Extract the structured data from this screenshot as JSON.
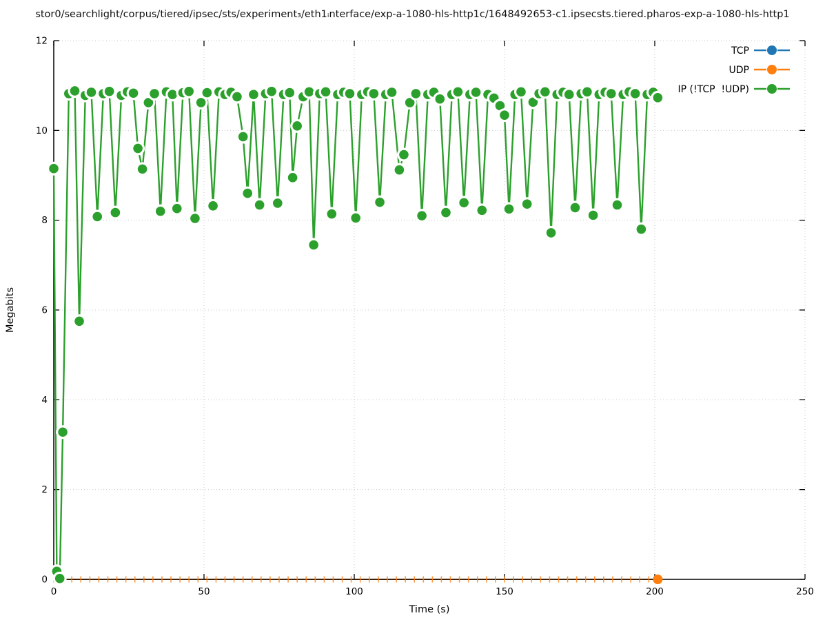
{
  "title": "stor0/searchlight/corpus/tiered/ipsec/sts/experiment₃/eth1ᵢnterface/exp-a-1080-hls-http1c/1648492653-c1.ipsecsts.tiered.pharos-exp-a-1080-hls-http1",
  "colors": {
    "tcp": "#1f77b4",
    "udp": "#ff7f0e",
    "ip": "#2ca02c",
    "grid": "#c8c8c8",
    "axis": "#000000",
    "background": "#ffffff"
  },
  "chart_data": {
    "type": "line",
    "title": "stor0/searchlight/corpus/tiered/ipsec/sts/experiment₃/eth1ᵢnterface/exp-a-1080-hls-http1c/1648492653-c1.ipsecsts.tiered.pharos-exp-a-1080-hls-http1",
    "xlabel": "Time (s)",
    "ylabel": "Megabits",
    "xlim": [
      0,
      250
    ],
    "ylim": [
      0,
      12
    ],
    "x_ticks": [
      0,
      50,
      100,
      150,
      200,
      250
    ],
    "y_ticks": [
      0,
      2,
      4,
      6,
      8,
      10,
      12
    ],
    "grid": true,
    "legend_position": "top-right-inside",
    "marker_style": "filled-circle-with-white-halo (gnuplot linespoints pointintervalbox)",
    "series": [
      {
        "name": "TCP",
        "color": "#1f77b4",
        "points": []
      },
      {
        "name": "UDP",
        "color": "#ff7f0e",
        "marker": "small-dash",
        "end_marker": "large-dot",
        "points": [
          [
            0,
            0
          ],
          [
            3,
            0
          ],
          [
            6,
            0
          ],
          [
            9,
            0
          ],
          [
            12,
            0
          ],
          [
            15,
            0
          ],
          [
            18,
            0
          ],
          [
            21,
            0
          ],
          [
            24,
            0
          ],
          [
            27,
            0
          ],
          [
            30,
            0
          ],
          [
            33,
            0
          ],
          [
            36,
            0
          ],
          [
            39,
            0
          ],
          [
            42,
            0
          ],
          [
            45,
            0
          ],
          [
            48,
            0
          ],
          [
            51,
            0
          ],
          [
            54,
            0
          ],
          [
            57,
            0
          ],
          [
            60,
            0
          ],
          [
            63,
            0
          ],
          [
            66,
            0
          ],
          [
            69,
            0
          ],
          [
            72,
            0
          ],
          [
            75,
            0
          ],
          [
            78,
            0
          ],
          [
            81,
            0
          ],
          [
            84,
            0
          ],
          [
            87,
            0
          ],
          [
            90,
            0
          ],
          [
            93,
            0
          ],
          [
            96,
            0
          ],
          [
            99,
            0
          ],
          [
            102,
            0
          ],
          [
            105,
            0
          ],
          [
            108,
            0
          ],
          [
            111,
            0
          ],
          [
            114,
            0
          ],
          [
            117,
            0
          ],
          [
            120,
            0
          ],
          [
            123,
            0
          ],
          [
            126,
            0
          ],
          [
            129,
            0
          ],
          [
            132,
            0
          ],
          [
            135,
            0
          ],
          [
            138,
            0
          ],
          [
            141,
            0
          ],
          [
            144,
            0
          ],
          [
            147,
            0
          ],
          [
            150,
            0
          ],
          [
            153,
            0
          ],
          [
            156,
            0
          ],
          [
            159,
            0
          ],
          [
            162,
            0
          ],
          [
            165,
            0
          ],
          [
            168,
            0
          ],
          [
            171,
            0
          ],
          [
            174,
            0
          ],
          [
            177,
            0
          ],
          [
            180,
            0
          ],
          [
            183,
            0
          ],
          [
            186,
            0
          ],
          [
            189,
            0
          ],
          [
            192,
            0
          ],
          [
            195,
            0
          ],
          [
            198,
            0
          ],
          [
            201,
            0
          ]
        ]
      },
      {
        "name": "IP (!TCP  !UDP)",
        "color": "#2ca02c",
        "marker": "large-dot",
        "points": [
          [
            0,
            9.15
          ],
          [
            1,
            0.18
          ],
          [
            2,
            0.02
          ],
          [
            3,
            3.28
          ],
          [
            5,
            10.82
          ],
          [
            7,
            10.88
          ],
          [
            8.5,
            5.75
          ],
          [
            10.5,
            10.78
          ],
          [
            12.5,
            10.85
          ],
          [
            14.5,
            8.08
          ],
          [
            16.5,
            10.82
          ],
          [
            18.5,
            10.87
          ],
          [
            20.5,
            8.17
          ],
          [
            22.5,
            10.78
          ],
          [
            24.5,
            10.86
          ],
          [
            26.5,
            10.83
          ],
          [
            28,
            9.6
          ],
          [
            29.5,
            9.14
          ],
          [
            31.5,
            10.62
          ],
          [
            33.5,
            10.82
          ],
          [
            35.5,
            8.2
          ],
          [
            37.5,
            10.86
          ],
          [
            39.5,
            10.8
          ],
          [
            41,
            8.26
          ],
          [
            43,
            10.84
          ],
          [
            45,
            10.87
          ],
          [
            47,
            8.04
          ],
          [
            49,
            10.62
          ],
          [
            51,
            10.84
          ],
          [
            53,
            8.32
          ],
          [
            55,
            10.86
          ],
          [
            57,
            10.8
          ],
          [
            59,
            10.85
          ],
          [
            61,
            10.75
          ],
          [
            63,
            9.86
          ],
          [
            64.5,
            8.6
          ],
          [
            66.5,
            10.8
          ],
          [
            68.5,
            8.34
          ],
          [
            70.5,
            10.82
          ],
          [
            72.5,
            10.87
          ],
          [
            74.5,
            8.38
          ],
          [
            76.5,
            10.8
          ],
          [
            78.5,
            10.84
          ],
          [
            79.5,
            8.95
          ],
          [
            81,
            10.1
          ],
          [
            83,
            10.75
          ],
          [
            85,
            10.86
          ],
          [
            86.5,
            7.45
          ],
          [
            88.5,
            10.82
          ],
          [
            90.5,
            10.86
          ],
          [
            92.5,
            8.14
          ],
          [
            94.5,
            10.8
          ],
          [
            96.5,
            10.85
          ],
          [
            98.5,
            10.82
          ],
          [
            100.5,
            8.05
          ],
          [
            102.5,
            10.8
          ],
          [
            104.5,
            10.86
          ],
          [
            106.5,
            10.82
          ],
          [
            108.5,
            8.4
          ],
          [
            110.5,
            10.8
          ],
          [
            112.5,
            10.85
          ],
          [
            115,
            9.12
          ],
          [
            116.5,
            9.46
          ],
          [
            118.5,
            10.62
          ],
          [
            120.5,
            10.82
          ],
          [
            122.5,
            8.1
          ],
          [
            124.5,
            10.8
          ],
          [
            126.5,
            10.85
          ],
          [
            128.5,
            10.7
          ],
          [
            130.5,
            8.17
          ],
          [
            132.5,
            10.8
          ],
          [
            134.5,
            10.86
          ],
          [
            136.5,
            8.39
          ],
          [
            138.5,
            10.8
          ],
          [
            140.5,
            10.85
          ],
          [
            142.5,
            8.22
          ],
          [
            144.5,
            10.8
          ],
          [
            146.5,
            10.72
          ],
          [
            148.5,
            10.55
          ],
          [
            150,
            10.34
          ],
          [
            151.5,
            8.25
          ],
          [
            153.5,
            10.8
          ],
          [
            155.5,
            10.86
          ],
          [
            157.5,
            8.36
          ],
          [
            159.5,
            10.63
          ],
          [
            161.5,
            10.82
          ],
          [
            163.5,
            10.86
          ],
          [
            165.5,
            7.72
          ],
          [
            167.5,
            10.8
          ],
          [
            169.5,
            10.85
          ],
          [
            171.5,
            10.8
          ],
          [
            173.5,
            8.28
          ],
          [
            175.5,
            10.82
          ],
          [
            177.5,
            10.86
          ],
          [
            179.5,
            8.11
          ],
          [
            181.5,
            10.8
          ],
          [
            183.5,
            10.85
          ],
          [
            185.5,
            10.82
          ],
          [
            187.5,
            8.34
          ],
          [
            189.5,
            10.8
          ],
          [
            191.5,
            10.86
          ],
          [
            193.5,
            10.82
          ],
          [
            195.5,
            7.8
          ],
          [
            197.5,
            10.8
          ],
          [
            199.5,
            10.85
          ],
          [
            201,
            10.73
          ]
        ]
      }
    ]
  }
}
